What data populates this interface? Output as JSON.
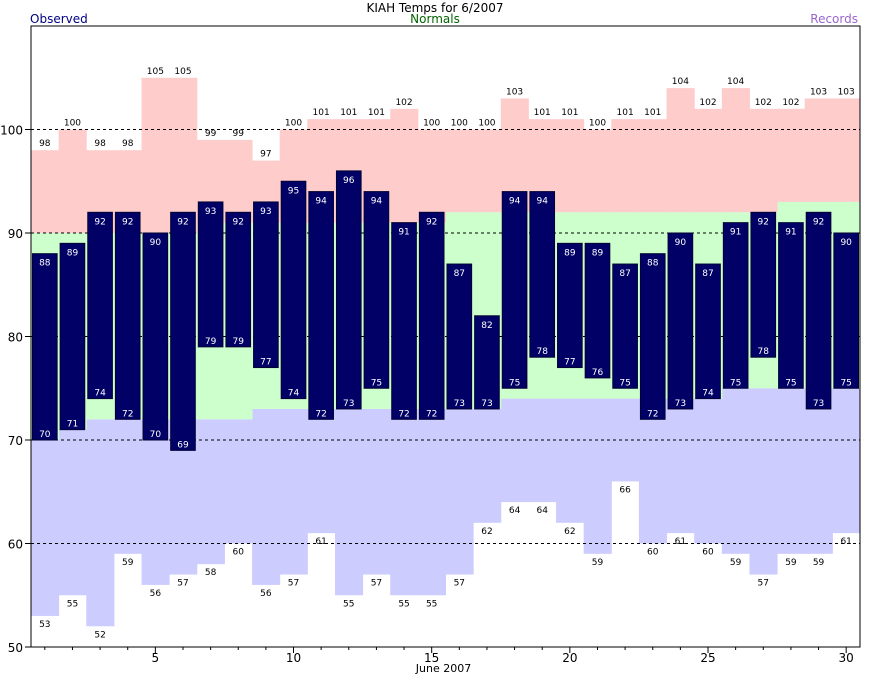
{
  "chart_data": {
    "type": "bar",
    "title": "KIAH Temps for 6/2007",
    "xlabel": "June 2007",
    "legend": [
      "Observed",
      "Normals",
      "Records"
    ],
    "colors": {
      "observed": "#000066",
      "normals": "#ccffcc",
      "record_high": "#ffcccc",
      "record_low": "#ccccff",
      "observed_text": "#000080",
      "normals_text": "#006400",
      "records_text": "#9966cc"
    },
    "ylim": [
      50,
      110
    ],
    "yticks": [
      50,
      60,
      70,
      80,
      90,
      100
    ],
    "xticks": [
      5,
      10,
      15,
      20,
      25,
      30
    ],
    "days": [
      1,
      2,
      3,
      4,
      5,
      6,
      7,
      8,
      9,
      10,
      11,
      12,
      13,
      14,
      15,
      16,
      17,
      18,
      19,
      20,
      21,
      22,
      23,
      24,
      25,
      26,
      27,
      28,
      29,
      30
    ],
    "observed_high": [
      88,
      89,
      92,
      92,
      90,
      92,
      93,
      92,
      93,
      95,
      94,
      96,
      94,
      91,
      92,
      87,
      82,
      94,
      94,
      89,
      89,
      87,
      88,
      90,
      87,
      91,
      92,
      91,
      92,
      90
    ],
    "observed_low": [
      70,
      71,
      74,
      72,
      70,
      69,
      79,
      79,
      77,
      74,
      72,
      73,
      75,
      72,
      72,
      73,
      73,
      75,
      78,
      77,
      76,
      75,
      72,
      73,
      74,
      75,
      78,
      75,
      73,
      75
    ],
    "normal_high": [
      90,
      90,
      90,
      90,
      90,
      90,
      91,
      91,
      91,
      91,
      91,
      91,
      91,
      91,
      91,
      92,
      92,
      92,
      92,
      92,
      92,
      92,
      92,
      92,
      92,
      92,
      92,
      93,
      93,
      93
    ],
    "normal_low": [
      70,
      71,
      72,
      72,
      72,
      72,
      72,
      72,
      73,
      73,
      73,
      73,
      73,
      73,
      73,
      73,
      73,
      74,
      74,
      74,
      74,
      74,
      74,
      74,
      74,
      75,
      75,
      75,
      75,
      75
    ],
    "record_high": [
      98,
      100,
      98,
      98,
      105,
      105,
      99,
      99,
      97,
      100,
      101,
      101,
      101,
      102,
      100,
      100,
      100,
      103,
      101,
      101,
      100,
      101,
      101,
      104,
      102,
      104,
      102,
      102,
      103,
      103
    ],
    "record_low": [
      53,
      55,
      52,
      59,
      56,
      57,
      58,
      60,
      56,
      57,
      61,
      55,
      57,
      55,
      55,
      57,
      62,
      64,
      64,
      62,
      59,
      66,
      60,
      61,
      60,
      59,
      57,
      59,
      59,
      61
    ]
  }
}
